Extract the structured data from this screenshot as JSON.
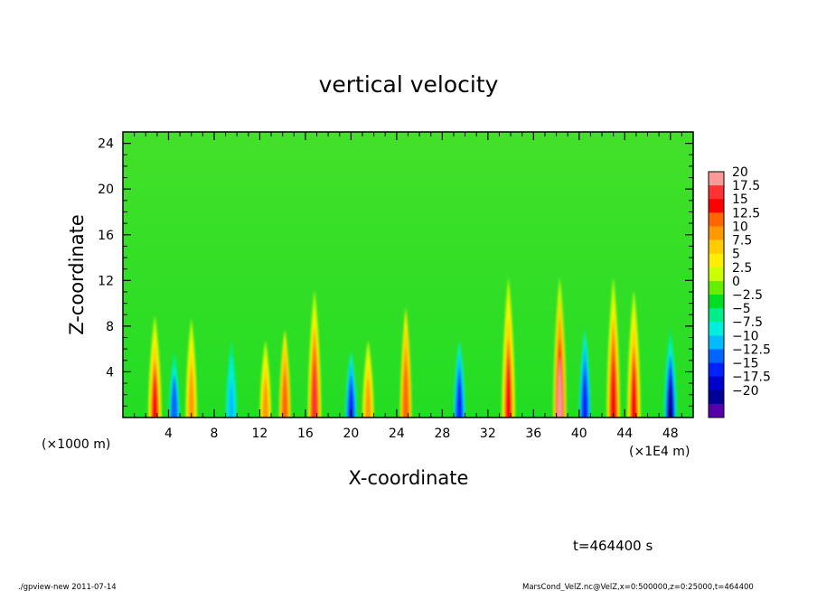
{
  "chart_data": {
    "type": "heatmap",
    "title": "vertical velocity",
    "xlabel": "X-coordinate",
    "ylabel": "Z-coordinate",
    "x_unit_left": "(×1000 m)",
    "x_unit_right": "(×1E4 m)",
    "xlim": [
      0,
      50
    ],
    "ylim": [
      0,
      25
    ],
    "xticks": [
      "4",
      "8",
      "12",
      "16",
      "20",
      "24",
      "28",
      "32",
      "36",
      "40",
      "44",
      "48"
    ],
    "xtick_values": [
      4,
      8,
      12,
      16,
      20,
      24,
      28,
      32,
      36,
      40,
      44,
      48
    ],
    "yticks": [
      "4",
      "8",
      "12",
      "16",
      "20",
      "24"
    ],
    "ytick_values": [
      4,
      8,
      12,
      16,
      20,
      24
    ],
    "colorbar": {
      "min": -20,
      "max": 20,
      "labels": [
        "20",
        "17.5",
        "15",
        "12.5",
        "10",
        "7.5",
        "5",
        "2.5",
        "0",
        "−2.5",
        "−5",
        "−7.5",
        "−10",
        "−12.5",
        "−15",
        "−17.5",
        "−20"
      ],
      "colors": [
        "#ff9999",
        "#ff3333",
        "#ff0000",
        "#ff6600",
        "#ff9900",
        "#ffcc00",
        "#ffee00",
        "#ccff00",
        "#66ee00",
        "#00dd22",
        "#00ee88",
        "#00eedd",
        "#00bbff",
        "#0066ff",
        "#0022ff",
        "#0000cc",
        "#000099",
        "#5500aa"
      ]
    },
    "field_features": [
      {
        "x": 2.8,
        "z_top": 8,
        "peak": 14
      },
      {
        "x": 4.5,
        "z_top": 6,
        "peak": -11
      },
      {
        "x": 6.0,
        "z_top": 9,
        "peak": 9
      },
      {
        "x": 9.5,
        "z_top": 7,
        "peak": -8
      },
      {
        "x": 12.5,
        "z_top": 7,
        "peak": 10
      },
      {
        "x": 14.2,
        "z_top": 8,
        "peak": 12
      },
      {
        "x": 16.8,
        "z_top": 10,
        "peak": 16
      },
      {
        "x": 20.0,
        "z_top": 6,
        "peak": -13
      },
      {
        "x": 21.5,
        "z_top": 7,
        "peak": 10
      },
      {
        "x": 24.8,
        "z_top": 10,
        "peak": 13
      },
      {
        "x": 29.5,
        "z_top": 7,
        "peak": -12
      },
      {
        "x": 33.8,
        "z_top": 11,
        "peak": 14
      },
      {
        "x": 38.3,
        "z_top": 11,
        "peak": 18
      },
      {
        "x": 40.5,
        "z_top": 8,
        "peak": -12
      },
      {
        "x": 43.0,
        "z_top": 11,
        "peak": 15
      },
      {
        "x": 44.8,
        "z_top": 10,
        "peak": 14
      },
      {
        "x": 48.0,
        "z_top": 7,
        "peak": -16
      }
    ]
  },
  "time_label": "t=464400 s",
  "footer_left": "./gpview-new   2011-07-14",
  "footer_right": "MarsCond_VelZ.nc@VelZ,x=0:500000,z=0:25000,t=464400"
}
